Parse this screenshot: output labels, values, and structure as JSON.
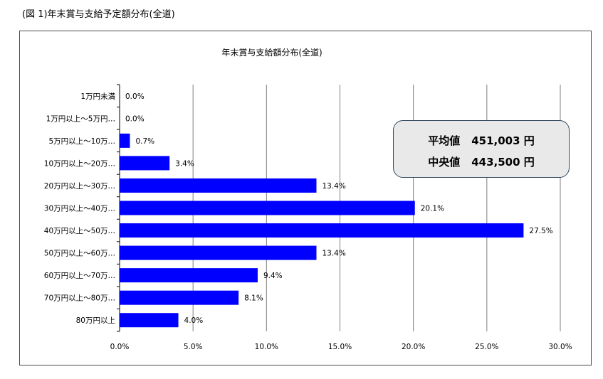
{
  "figure_caption": "(図 1)年末賞与支給予定額分布(全道)",
  "stats": {
    "mean_label": "平均値",
    "mean_value": "451,003 円",
    "median_label": "中央値",
    "median_value": "443,500 円"
  },
  "colors": {
    "bar": "#0000ff",
    "grid": "#7f7f7f"
  },
  "chart_data": {
    "type": "bar",
    "orientation": "horizontal",
    "title": "年末賞与支給額分布(全道)",
    "categories": [
      "1万円未満",
      "1万円以上～5万円…",
      "5万円以上～10万…",
      "10万円以上～20万…",
      "20万円以上～30万…",
      "30万円以上～40万…",
      "40万円以上～50万…",
      "50万円以上～60万…",
      "60万円以上～70万…",
      "70万円以上～80万…",
      "80万円以上"
    ],
    "values": [
      0.0,
      0.0,
      0.7,
      3.4,
      13.4,
      20.1,
      27.5,
      13.4,
      9.4,
      8.1,
      4.0
    ],
    "value_labels": [
      "0.0%",
      "0.0%",
      "0.7%",
      "3.4%",
      "13.4%",
      "20.1%",
      "27.5%",
      "13.4%",
      "9.4%",
      "8.1%",
      "4.0%"
    ],
    "xlim": [
      0,
      30
    ],
    "x_ticks": [
      0,
      5,
      10,
      15,
      20,
      25,
      30
    ],
    "x_tick_labels": [
      "0.0%",
      "5.0%",
      "10.0%",
      "15.0%",
      "20.0%",
      "25.0%",
      "30.0%"
    ],
    "grid": true,
    "legend": "none"
  }
}
